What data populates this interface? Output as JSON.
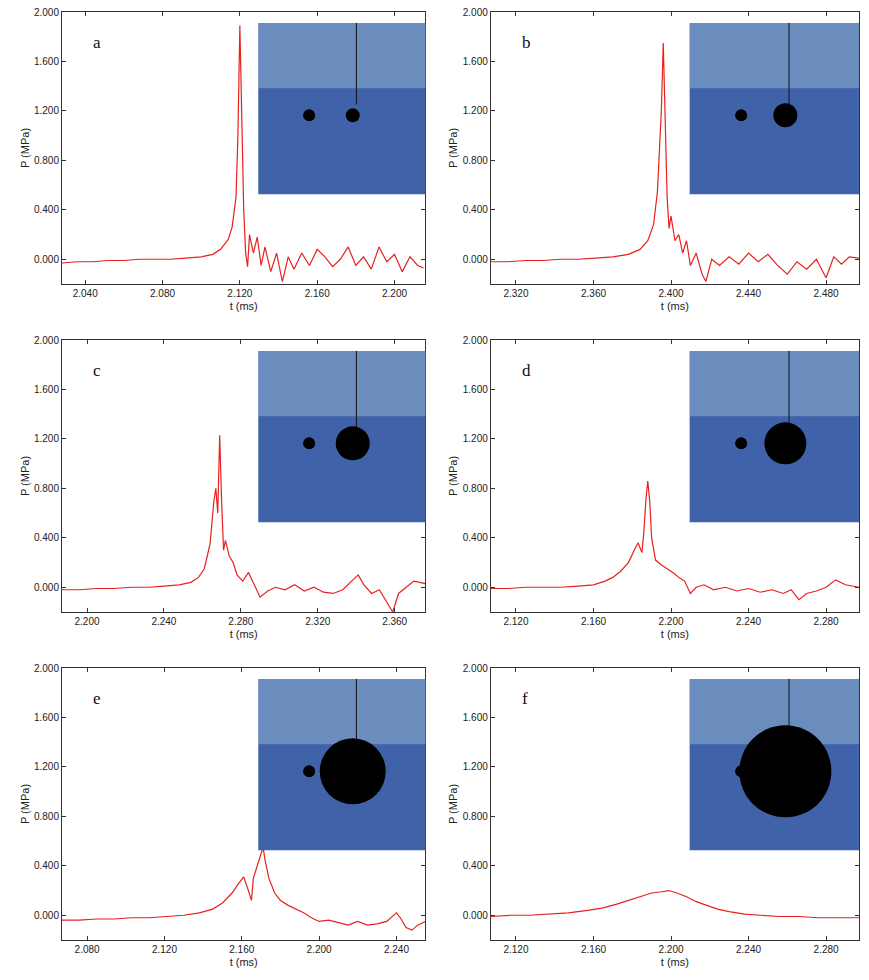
{
  "chart_data": [
    {
      "type": "line",
      "title": "a",
      "x_label": "t (ms)",
      "y_label": "P (MPa)",
      "color": "#e8201e",
      "xlim": [
        2.028,
        2.216
      ],
      "ylim": [
        -0.2,
        2.0
      ],
      "xticks": [
        {
          "value": 2.04,
          "label": "2.040"
        },
        {
          "value": 2.08,
          "label": "2.080"
        },
        {
          "value": 2.12,
          "label": "2.120"
        },
        {
          "value": 2.16,
          "label": "2.160"
        },
        {
          "value": 2.2,
          "label": "2.200"
        }
      ],
      "yticks": [
        {
          "value": 0,
          "label": "0.000"
        },
        {
          "value": 0.4,
          "label": "0.400"
        },
        {
          "value": 0.8,
          "label": "0.800"
        },
        {
          "value": 1.2,
          "label": "1.200"
        },
        {
          "value": 1.6,
          "label": "1.600"
        },
        {
          "value": 2.0,
          "label": "2.000"
        }
      ],
      "x": [
        2.028,
        2.036,
        2.044,
        2.052,
        2.06,
        2.068,
        2.076,
        2.084,
        2.092,
        2.1,
        2.106,
        2.11,
        2.114,
        2.116,
        2.118,
        2.119,
        2.12,
        2.121,
        2.122,
        2.123,
        2.124,
        2.125,
        2.127,
        2.129,
        2.131,
        2.133,
        2.136,
        2.139,
        2.142,
        2.145,
        2.148,
        2.152,
        2.156,
        2.16,
        2.164,
        2.168,
        2.172,
        2.176,
        2.18,
        2.184,
        2.188,
        2.192,
        2.196,
        2.2,
        2.204,
        2.208,
        2.212,
        2.215
      ],
      "values": [
        -0.03,
        -0.02,
        -0.02,
        -0.01,
        -0.01,
        0.0,
        0.0,
        0.0,
        0.01,
        0.02,
        0.04,
        0.08,
        0.16,
        0.26,
        0.5,
        1.0,
        1.89,
        1.2,
        0.4,
        0.05,
        -0.06,
        0.2,
        0.05,
        0.18,
        -0.05,
        0.1,
        -0.1,
        0.05,
        -0.18,
        0.02,
        -0.08,
        0.05,
        -0.05,
        0.08,
        0.02,
        -0.06,
        0.0,
        0.1,
        -0.05,
        0.02,
        -0.08,
        0.1,
        -0.02,
        0.04,
        -0.1,
        0.02,
        -0.05,
        -0.07
      ]
    },
    {
      "type": "line",
      "title": "b",
      "x_label": "t (ms)",
      "y_label": "P (MPa)",
      "color": "#e8201e",
      "xlim": [
        2.307,
        2.497
      ],
      "ylim": [
        -0.2,
        2.0
      ],
      "xticks": [
        {
          "value": 2.32,
          "label": "2.320"
        },
        {
          "value": 2.36,
          "label": "2.360"
        },
        {
          "value": 2.4,
          "label": "2.400"
        },
        {
          "value": 2.44,
          "label": "2.440"
        },
        {
          "value": 2.48,
          "label": "2.480"
        }
      ],
      "yticks": [
        {
          "value": 0,
          "label": "0.000"
        },
        {
          "value": 0.4,
          "label": "0.400"
        },
        {
          "value": 0.8,
          "label": "0.800"
        },
        {
          "value": 1.2,
          "label": "1.200"
        },
        {
          "value": 1.6,
          "label": "1.600"
        },
        {
          "value": 2.0,
          "label": "2.000"
        }
      ],
      "x": [
        2.307,
        2.316,
        2.325,
        2.334,
        2.343,
        2.352,
        2.361,
        2.37,
        2.378,
        2.384,
        2.388,
        2.391,
        2.393,
        2.395,
        2.396,
        2.397,
        2.398,
        2.399,
        2.4,
        2.402,
        2.404,
        2.406,
        2.408,
        2.41,
        2.413,
        2.416,
        2.418,
        2.421,
        2.425,
        2.43,
        2.435,
        2.44,
        2.445,
        2.45,
        2.455,
        2.46,
        2.465,
        2.47,
        2.475,
        2.48,
        2.484,
        2.488,
        2.492,
        2.497
      ],
      "values": [
        -0.02,
        -0.02,
        -0.01,
        -0.01,
        0.0,
        0.0,
        0.01,
        0.02,
        0.04,
        0.08,
        0.15,
        0.28,
        0.55,
        1.2,
        1.75,
        1.2,
        0.5,
        0.25,
        0.35,
        0.15,
        0.2,
        0.05,
        0.15,
        -0.05,
        0.05,
        -0.12,
        -0.18,
        0.0,
        -0.05,
        0.02,
        -0.04,
        0.05,
        -0.02,
        0.04,
        -0.05,
        -0.12,
        -0.02,
        -0.08,
        0.0,
        -0.15,
        0.02,
        -0.04,
        0.02,
        0.01
      ]
    },
    {
      "type": "line",
      "title": "c",
      "x_label": "t (ms)",
      "y_label": "P (MPa)",
      "color": "#e8201e",
      "xlim": [
        2.187,
        2.376
      ],
      "ylim": [
        -0.2,
        2.0
      ],
      "xticks": [
        {
          "value": 2.2,
          "label": "2.200"
        },
        {
          "value": 2.24,
          "label": "2.240"
        },
        {
          "value": 2.28,
          "label": "2.280"
        },
        {
          "value": 2.32,
          "label": "2.320"
        },
        {
          "value": 2.36,
          "label": "2.360"
        }
      ],
      "yticks": [
        {
          "value": 0,
          "label": "0.000"
        },
        {
          "value": 0.4,
          "label": "0.400"
        },
        {
          "value": 0.8,
          "label": "0.800"
        },
        {
          "value": 1.2,
          "label": "1.200"
        },
        {
          "value": 1.6,
          "label": "1.600"
        },
        {
          "value": 2.0,
          "label": "2.000"
        }
      ],
      "x": [
        2.187,
        2.196,
        2.205,
        2.214,
        2.223,
        2.232,
        2.24,
        2.248,
        2.254,
        2.258,
        2.261,
        2.264,
        2.266,
        2.267,
        2.268,
        2.269,
        2.27,
        2.271,
        2.272,
        2.274,
        2.276,
        2.278,
        2.281,
        2.284,
        2.287,
        2.29,
        2.294,
        2.298,
        2.303,
        2.308,
        2.313,
        2.318,
        2.323,
        2.328,
        2.333,
        2.338,
        2.341,
        2.344,
        2.348,
        2.352,
        2.356,
        2.359,
        2.362,
        2.366,
        2.37,
        2.376
      ],
      "values": [
        -0.02,
        -0.02,
        -0.01,
        -0.01,
        0.0,
        0.0,
        0.01,
        0.02,
        0.04,
        0.08,
        0.15,
        0.35,
        0.7,
        0.8,
        0.6,
        1.23,
        0.7,
        0.3,
        0.38,
        0.25,
        0.2,
        0.1,
        0.05,
        0.12,
        0.02,
        -0.08,
        -0.03,
        0.0,
        -0.02,
        0.02,
        -0.03,
        0.0,
        -0.04,
        -0.05,
        -0.02,
        0.05,
        0.1,
        0.02,
        -0.05,
        -0.02,
        -0.12,
        -0.2,
        -0.05,
        0.0,
        0.05,
        0.03
      ]
    },
    {
      "type": "line",
      "title": "d",
      "x_label": "t (ms)",
      "y_label": "P (MPa)",
      "color": "#e8201e",
      "xlim": [
        2.107,
        2.297
      ],
      "ylim": [
        -0.2,
        2.0
      ],
      "xticks": [
        {
          "value": 2.12,
          "label": "2.120"
        },
        {
          "value": 2.16,
          "label": "2.160"
        },
        {
          "value": 2.2,
          "label": "2.200"
        },
        {
          "value": 2.24,
          "label": "2.240"
        },
        {
          "value": 2.28,
          "label": "2.280"
        }
      ],
      "yticks": [
        {
          "value": 0,
          "label": "0.000"
        },
        {
          "value": 0.4,
          "label": "0.400"
        },
        {
          "value": 0.8,
          "label": "0.800"
        },
        {
          "value": 1.2,
          "label": "1.200"
        },
        {
          "value": 1.6,
          "label": "1.600"
        },
        {
          "value": 2.0,
          "label": "2.000"
        }
      ],
      "x": [
        2.107,
        2.116,
        2.125,
        2.134,
        2.143,
        2.152,
        2.16,
        2.166,
        2.17,
        2.174,
        2.178,
        2.181,
        2.183,
        2.185,
        2.186,
        2.187,
        2.188,
        2.189,
        2.19,
        2.192,
        2.195,
        2.198,
        2.201,
        2.204,
        2.207,
        2.21,
        2.213,
        2.217,
        2.222,
        2.228,
        2.234,
        2.24,
        2.246,
        2.252,
        2.258,
        2.262,
        2.266,
        2.27,
        2.275,
        2.28,
        2.285,
        2.29,
        2.297
      ],
      "values": [
        -0.01,
        -0.01,
        0.0,
        0.0,
        0.0,
        0.01,
        0.02,
        0.05,
        0.08,
        0.13,
        0.2,
        0.3,
        0.36,
        0.28,
        0.45,
        0.7,
        0.86,
        0.7,
        0.4,
        0.22,
        0.18,
        0.15,
        0.12,
        0.08,
        0.05,
        -0.05,
        0.0,
        0.02,
        -0.02,
        0.0,
        -0.03,
        -0.01,
        -0.04,
        -0.02,
        -0.05,
        -0.02,
        -0.1,
        -0.05,
        -0.03,
        0.0,
        0.06,
        0.02,
        0.0
      ]
    },
    {
      "type": "line",
      "title": "e",
      "x_label": "t (ms)",
      "y_label": "P (MPa)",
      "color": "#e8201e",
      "xlim": [
        2.067,
        2.255
      ],
      "ylim": [
        -0.2,
        2.0
      ],
      "xticks": [
        {
          "value": 2.08,
          "label": "2.080"
        },
        {
          "value": 2.12,
          "label": "2.120"
        },
        {
          "value": 2.16,
          "label": "2.160"
        },
        {
          "value": 2.2,
          "label": "2.200"
        },
        {
          "value": 2.24,
          "label": "2.240"
        }
      ],
      "yticks": [
        {
          "value": 0,
          "label": "0.000"
        },
        {
          "value": 0.4,
          "label": "0.400"
        },
        {
          "value": 0.8,
          "label": "0.800"
        },
        {
          "value": 1.2,
          "label": "1.200"
        },
        {
          "value": 1.6,
          "label": "1.600"
        },
        {
          "value": 2.0,
          "label": "2.000"
        }
      ],
      "x": [
        2.067,
        2.076,
        2.085,
        2.094,
        2.103,
        2.112,
        2.121,
        2.13,
        2.138,
        2.145,
        2.15,
        2.155,
        2.158,
        2.161,
        2.163,
        2.165,
        2.166,
        2.168,
        2.17,
        2.171,
        2.172,
        2.174,
        2.177,
        2.18,
        2.184,
        2.188,
        2.192,
        2.196,
        2.2,
        2.205,
        2.21,
        2.215,
        2.22,
        2.225,
        2.23,
        2.235,
        2.24,
        2.242,
        2.245,
        2.248,
        2.251,
        2.255
      ],
      "values": [
        -0.04,
        -0.04,
        -0.03,
        -0.03,
        -0.02,
        -0.02,
        -0.01,
        0.0,
        0.02,
        0.05,
        0.1,
        0.18,
        0.25,
        0.31,
        0.22,
        0.12,
        0.3,
        0.4,
        0.5,
        0.55,
        0.45,
        0.3,
        0.18,
        0.12,
        0.08,
        0.05,
        0.02,
        -0.02,
        -0.05,
        -0.04,
        -0.06,
        -0.08,
        -0.05,
        -0.08,
        -0.07,
        -0.05,
        0.02,
        -0.02,
        -0.1,
        -0.12,
        -0.08,
        -0.05
      ]
    },
    {
      "type": "line",
      "title": "f",
      "x_label": "t (ms)",
      "y_label": "P (MPa)",
      "color": "#e8201e",
      "xlim": [
        2.107,
        2.297
      ],
      "ylim": [
        -0.2,
        2.0
      ],
      "xticks": [
        {
          "value": 2.12,
          "label": "2.120"
        },
        {
          "value": 2.16,
          "label": "2.160"
        },
        {
          "value": 2.2,
          "label": "2.200"
        },
        {
          "value": 2.24,
          "label": "2.240"
        },
        {
          "value": 2.28,
          "label": "2.280"
        }
      ],
      "yticks": [
        {
          "value": 0,
          "label": "0.000"
        },
        {
          "value": 0.4,
          "label": "0.400"
        },
        {
          "value": 0.8,
          "label": "0.800"
        },
        {
          "value": 1.2,
          "label": "1.200"
        },
        {
          "value": 1.6,
          "label": "1.600"
        },
        {
          "value": 2.0,
          "label": "2.000"
        }
      ],
      "x": [
        2.107,
        2.117,
        2.127,
        2.137,
        2.147,
        2.157,
        2.165,
        2.172,
        2.178,
        2.184,
        2.19,
        2.195,
        2.199,
        2.203,
        2.208,
        2.213,
        2.218,
        2.224,
        2.23,
        2.238,
        2.246,
        2.256,
        2.266,
        2.276,
        2.286,
        2.297
      ],
      "values": [
        -0.01,
        0.0,
        0.0,
        0.01,
        0.02,
        0.04,
        0.06,
        0.09,
        0.12,
        0.15,
        0.18,
        0.19,
        0.2,
        0.18,
        0.15,
        0.11,
        0.08,
        0.05,
        0.03,
        0.01,
        0.0,
        -0.01,
        -0.01,
        -0.02,
        -0.02,
        -0.02
      ]
    }
  ]
}
